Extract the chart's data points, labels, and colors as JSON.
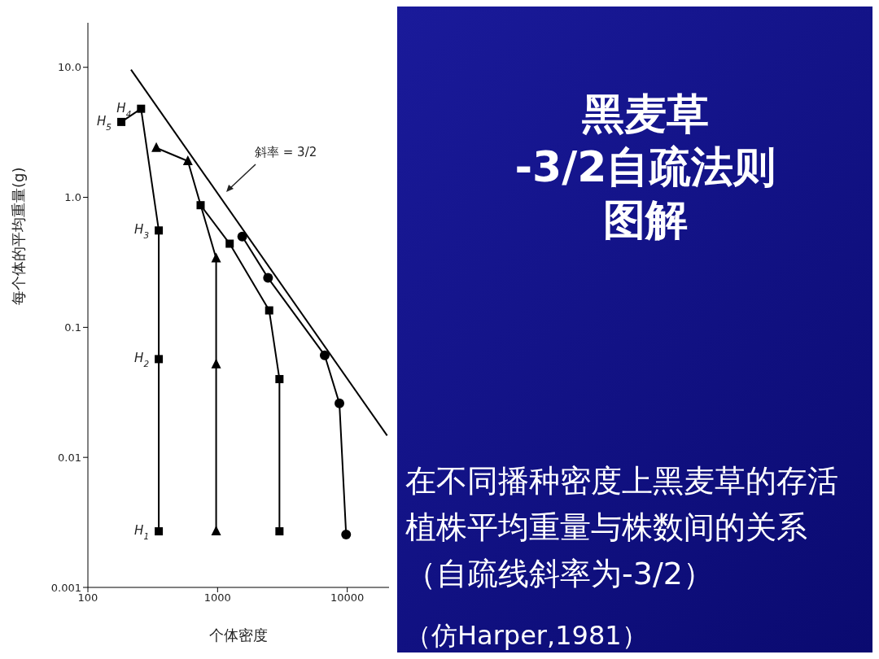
{
  "chart_data": {
    "type": "line",
    "title": "黑麦草\n-3/2自疏法则图解",
    "subtitle": "在不同播种密度上黑麦草的存活植株平均重量与株数间的关系（自疏线斜率为-3/2）",
    "xlabel": "个体密度",
    "ylabel": "每个体的平均重量(g)",
    "log": "xy",
    "xlim": [
      100,
      21000
    ],
    "ylim": [
      0.001,
      22
    ],
    "xticks": [
      100,
      1000,
      10000
    ],
    "yticks": [
      {
        "value": 10,
        "label": "10.0"
      },
      {
        "value": 1,
        "label": "1.0"
      },
      {
        "value": 0.1,
        "label": "0.1"
      },
      {
        "value": 0.01,
        "label": "0.01"
      },
      {
        "value": 0.001,
        "label": "0.001"
      }
    ],
    "grid": false,
    "line_style": "solid",
    "series": [
      {
        "color": "#000000",
        "marker": "square",
        "x": [
          352,
          352,
          352,
          257,
          181
        ],
        "values": [
          0.0027,
          0.057,
          0.556,
          4.8,
          3.8
        ]
      },
      {
        "color": "#000000",
        "marker": "triangle",
        "x": [
          975,
          975,
          975,
          590,
          337
        ],
        "values": [
          0.0027,
          0.052,
          0.34,
          1.9,
          2.4
        ]
      },
      {
        "color": "#000000",
        "marker": "square",
        "x": [
          3000,
          3000,
          2500,
          1240,
          740
        ],
        "values": [
          0.0027,
          0.04,
          0.135,
          0.44,
          0.87
        ]
      },
      {
        "color": "#000000",
        "marker": "circle",
        "x": [
          9800,
          8700,
          6700,
          2450,
          1550
        ],
        "values": [
          0.00255,
          0.026,
          0.061,
          0.24,
          0.5
        ]
      },
      {
        "color": "#000000",
        "marker": "none",
        "x": [
          215,
          20300
        ],
        "values": [
          9.6,
          0.0147
        ]
      }
    ],
    "annotations": [
      {
        "text": "H$_{1}$",
        "x": 352,
        "y": 0.0027
      },
      {
        "text": "H$_{2}$",
        "x": 352,
        "y": 0.057
      },
      {
        "text": "H$_{3}$",
        "x": 352,
        "y": 0.556
      },
      {
        "text": "H$_{4}$",
        "x": 257,
        "y": 4.8
      },
      {
        "text": "H$_{5}$",
        "x": 181,
        "y": 3.8
      },
      "斜率 = 3/2",
      "（仿Harper,1981）"
    ]
  }
}
